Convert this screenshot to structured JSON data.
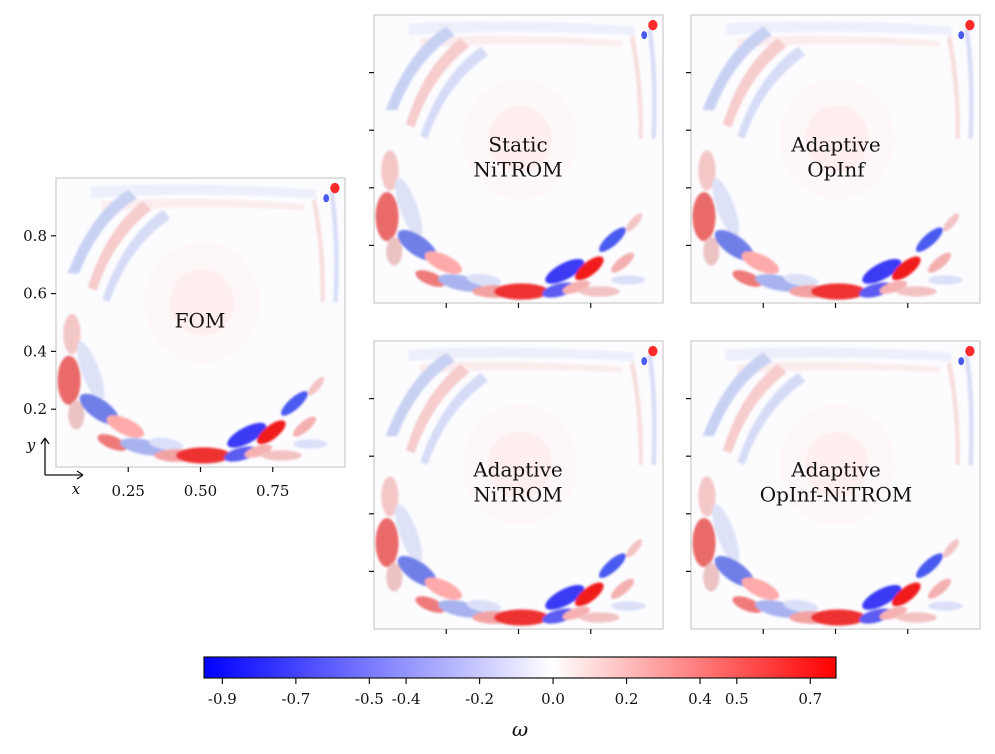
{
  "chart_data": {
    "type": "heatmap",
    "colormap": "bwr",
    "colorbar": {
      "label": "ω",
      "range": [
        -0.95,
        0.77
      ],
      "ticks": [
        -0.9,
        -0.7,
        -0.5,
        -0.4,
        -0.2,
        0.0,
        0.2,
        0.4,
        0.5,
        0.7
      ],
      "tick_labels": [
        "-0.9",
        "-0.7",
        "-0.5",
        "-0.4",
        "-0.2",
        "0.0",
        "0.2",
        "0.4",
        "0.5",
        "0.7"
      ]
    },
    "panels": [
      {
        "id": "fom",
        "label": [
          "FOM"
        ]
      },
      {
        "id": "static-nitrom",
        "label": [
          "Static",
          "NiTROM"
        ]
      },
      {
        "id": "adaptive-opinf",
        "label": [
          "Adaptive",
          "OpInf"
        ]
      },
      {
        "id": "adaptive-nitrom",
        "label": [
          "Adaptive",
          "NiTROM"
        ]
      },
      {
        "id": "adaptive-opinf-nitrom",
        "label": [
          "Adaptive",
          "OpInf-NiTROM"
        ]
      }
    ],
    "axes": {
      "xlim": [
        0,
        1
      ],
      "ylim": [
        0,
        1
      ],
      "x_ticks": [
        0.25,
        0.5,
        0.75
      ],
      "x_tick_labels": [
        "0.25",
        "0.50",
        "0.75"
      ],
      "y_ticks": [
        0.2,
        0.4,
        0.6,
        0.8
      ],
      "y_tick_labels": [
        "0.2",
        "0.4",
        "0.6",
        "0.8"
      ],
      "x_axis_label": "x",
      "y_axis_label": "y"
    }
  }
}
